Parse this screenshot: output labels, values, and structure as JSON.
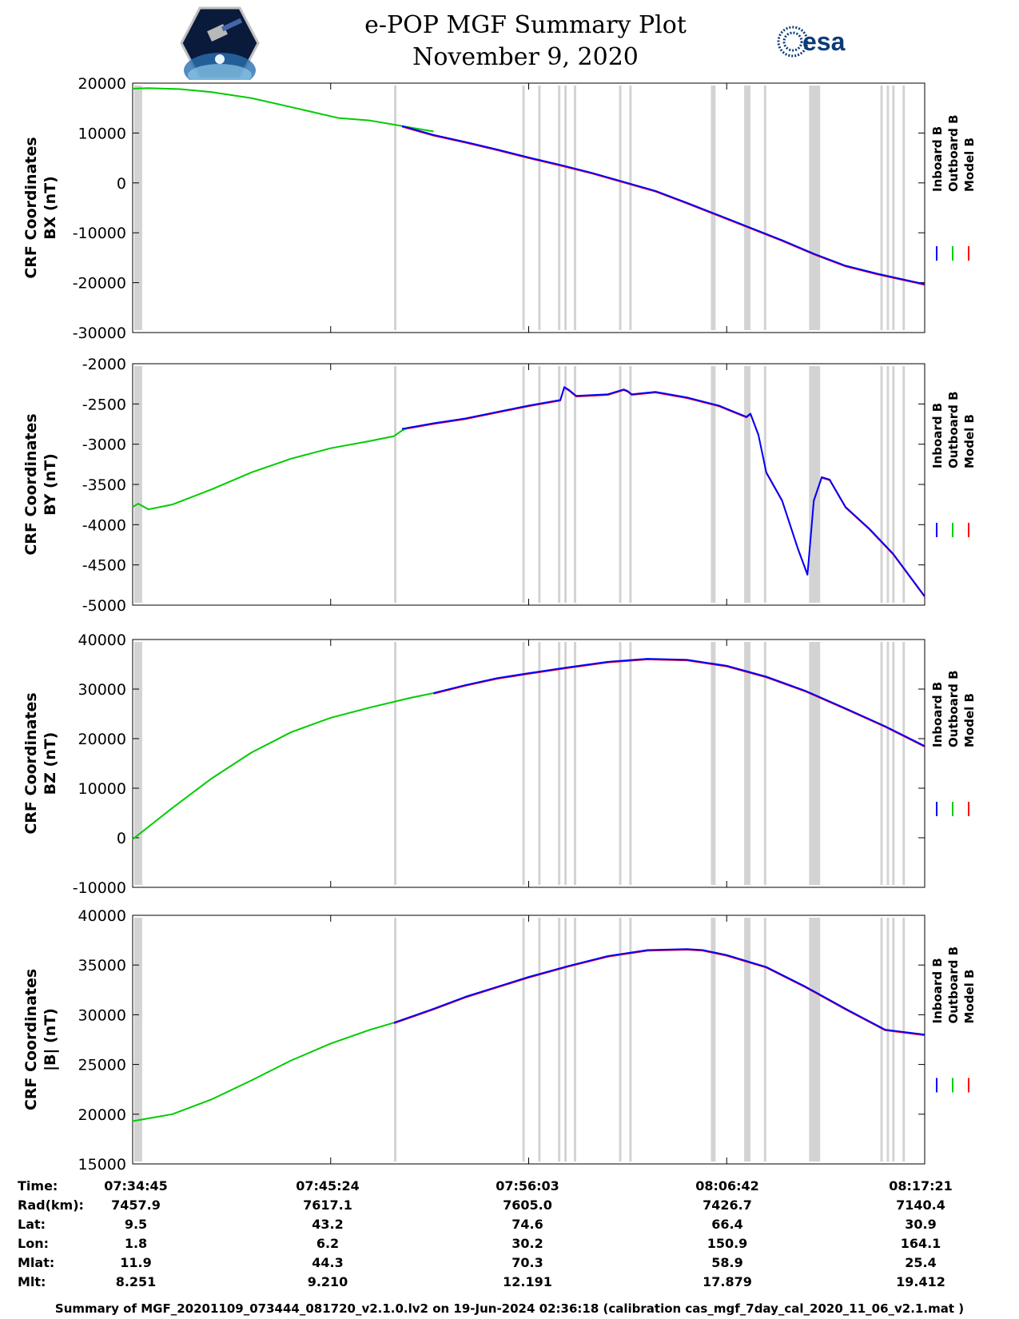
{
  "title": "e-POP MGF Summary Plot",
  "date": "November 9, 2020",
  "logos": {
    "left": "cassiope-mission-logo",
    "right_text": "esa"
  },
  "legend": [
    "Inboard B",
    "Outboard B",
    "Model B"
  ],
  "colors": {
    "inboard": "#0000ff",
    "outboard": "#00cc00",
    "model": "#ff0000",
    "gap": "#d3d3d3"
  },
  "chart_data": [
    {
      "type": "line",
      "panel": "BX",
      "ylabel": [
        "CRF Coordinates",
        "BX (nT)"
      ],
      "ylim": [
        -30000,
        20000
      ],
      "yticks": [
        -30000,
        -20000,
        -10000,
        0,
        10000,
        20000
      ],
      "xlim": [
        0,
        1.0
      ],
      "series": [
        {
          "name": "Outboard B",
          "color": "#00cc00",
          "x": [
            0.0,
            0.02,
            0.06,
            0.1,
            0.15,
            0.2,
            0.26,
            0.3,
            0.34,
            0.38
          ],
          "y": [
            18900,
            19000,
            18800,
            18200,
            17000,
            15200,
            13000,
            12500,
            11400,
            10300
          ]
        },
        {
          "name": "Inboard B",
          "color": "#0000ff",
          "x": [
            0.34,
            0.38,
            0.42,
            0.46,
            0.5,
            0.54,
            0.58,
            0.62,
            0.66,
            0.7,
            0.74,
            0.78,
            0.82,
            0.86,
            0.9,
            0.94,
            1.0
          ],
          "y": [
            11400,
            9600,
            8200,
            6700,
            5100,
            3600,
            2000,
            200,
            -1600,
            -4000,
            -6500,
            -9000,
            -11500,
            -14200,
            -16600,
            -18200,
            -20300
          ]
        }
      ]
    },
    {
      "type": "line",
      "panel": "BY",
      "ylabel": [
        "CRF Coordinates",
        "BY (nT)"
      ],
      "ylim": [
        -5000,
        -2000
      ],
      "yticks": [
        -5000,
        -4500,
        -4000,
        -3500,
        -3000,
        -2500,
        -2000
      ],
      "xlim": [
        0,
        1.0
      ],
      "series": [
        {
          "name": "Outboard B",
          "color": "#00cc00",
          "x": [
            0.0,
            0.007,
            0.02,
            0.05,
            0.1,
            0.15,
            0.2,
            0.25,
            0.3,
            0.33,
            0.34,
            0.35
          ],
          "y": [
            -3780,
            -3740,
            -3810,
            -3750,
            -3560,
            -3350,
            -3180,
            -3050,
            -2960,
            -2900,
            -2830,
            -2790
          ]
        },
        {
          "name": "Inboard B",
          "color": "#0000ff",
          "x": [
            0.34,
            0.38,
            0.42,
            0.5,
            0.54,
            0.545,
            0.55,
            0.56,
            0.6,
            0.62,
            0.625,
            0.63,
            0.66,
            0.7,
            0.74,
            0.76,
            0.775,
            0.78,
            0.79,
            0.8,
            0.82,
            0.84,
            0.852,
            0.86,
            0.87,
            0.88,
            0.9,
            0.93,
            0.96,
            1.0
          ],
          "y": [
            -2810,
            -2740,
            -2680,
            -2520,
            -2450,
            -2290,
            -2320,
            -2400,
            -2380,
            -2320,
            -2340,
            -2380,
            -2350,
            -2420,
            -2520,
            -2600,
            -2660,
            -2620,
            -2880,
            -3350,
            -3700,
            -4300,
            -4620,
            -3700,
            -3410,
            -3440,
            -3780,
            -4050,
            -4360,
            -4890
          ]
        }
      ]
    },
    {
      "type": "line",
      "panel": "BZ",
      "ylabel": [
        "CRF Coordinates",
        "BZ (nT)"
      ],
      "ylim": [
        -10000,
        40000
      ],
      "yticks": [
        -10000,
        0,
        10000,
        20000,
        30000,
        40000
      ],
      "xlim": [
        0,
        1.0
      ],
      "series": [
        {
          "name": "Outboard B",
          "color": "#00cc00",
          "x": [
            0.0,
            0.05,
            0.1,
            0.15,
            0.2,
            0.25,
            0.3,
            0.35,
            0.38
          ],
          "y": [
            -300,
            6000,
            12000,
            17200,
            21300,
            24200,
            26300,
            28200,
            29200
          ]
        },
        {
          "name": "Inboard B",
          "color": "#0000ff",
          "x": [
            0.38,
            0.42,
            0.46,
            0.5,
            0.55,
            0.6,
            0.65,
            0.7,
            0.75,
            0.8,
            0.85,
            0.9,
            0.95,
            1.0
          ],
          "y": [
            29200,
            30800,
            32200,
            33200,
            34400,
            35500,
            36100,
            35900,
            34700,
            32500,
            29600,
            26100,
            22500,
            18500
          ]
        }
      ]
    },
    {
      "type": "line",
      "panel": "|B|",
      "ylabel": [
        "CRF Coordinates",
        "|B| (nT)"
      ],
      "ylim": [
        15000,
        40000
      ],
      "yticks": [
        15000,
        20000,
        25000,
        30000,
        35000,
        40000
      ],
      "xlim": [
        0,
        1.0
      ],
      "series": [
        {
          "name": "Outboard B",
          "color": "#00cc00",
          "x": [
            0.0,
            0.05,
            0.1,
            0.15,
            0.2,
            0.25,
            0.3,
            0.33
          ],
          "y": [
            19300,
            20000,
            21500,
            23400,
            25400,
            27100,
            28500,
            29200
          ]
        },
        {
          "name": "Inboard B",
          "color": "#0000ff",
          "x": [
            0.33,
            0.38,
            0.42,
            0.46,
            0.5,
            0.55,
            0.6,
            0.65,
            0.7,
            0.72,
            0.75,
            0.8,
            0.85,
            0.9,
            0.95,
            1.0
          ],
          "y": [
            29200,
            30600,
            31800,
            32800,
            33800,
            34900,
            35900,
            36500,
            36600,
            36500,
            36000,
            34800,
            32800,
            30600,
            28500,
            28000
          ]
        }
      ]
    }
  ],
  "data_gaps": [
    [
      0.0,
      0.01
    ],
    [
      0.328,
      0.331
    ],
    [
      0.49,
      0.493
    ],
    [
      0.51,
      0.513
    ],
    [
      0.535,
      0.538
    ],
    [
      0.543,
      0.546
    ],
    [
      0.555,
      0.558
    ],
    [
      0.612,
      0.615
    ],
    [
      0.625,
      0.628
    ],
    [
      0.728,
      0.734
    ],
    [
      0.77,
      0.778
    ],
    [
      0.795,
      0.798
    ],
    [
      0.852,
      0.866
    ],
    [
      0.942,
      0.945
    ],
    [
      0.95,
      0.953
    ],
    [
      0.957,
      0.96
    ],
    [
      0.97,
      0.973
    ]
  ],
  "ephemeris": {
    "labels": [
      "Time:",
      "Rad(km):",
      "Lat:",
      "Lon:",
      "Mlat:",
      "Mlt:"
    ],
    "columns": [
      {
        "Time": "07:34:45",
        "Rad": "7457.9",
        "Lat": "9.5",
        "Lon": "1.8",
        "Mlat": "11.9",
        "Mlt": "8.251"
      },
      {
        "Time": "07:45:24",
        "Rad": "7617.1",
        "Lat": "43.2",
        "Lon": "6.2",
        "Mlat": "44.3",
        "Mlt": "9.210"
      },
      {
        "Time": "07:56:03",
        "Rad": "7605.0",
        "Lat": "74.6",
        "Lon": "30.2",
        "Mlat": "70.3",
        "Mlt": "12.191"
      },
      {
        "Time": "08:06:42",
        "Rad": "7426.7",
        "Lat": "66.4",
        "Lon": "150.9",
        "Mlat": "58.9",
        "Mlt": "17.879"
      },
      {
        "Time": "08:17:21",
        "Rad": "7140.4",
        "Lat": "30.9",
        "Lon": "164.1",
        "Mlat": "25.4",
        "Mlt": "19.412"
      }
    ]
  },
  "footer": "Summary of MGF_20201109_073444_081720_v2.1.0.lv2 on 19-Jun-2024 02:36:18 (calibration cas_mgf_7day_cal_2020_11_06_v2.1.mat )"
}
